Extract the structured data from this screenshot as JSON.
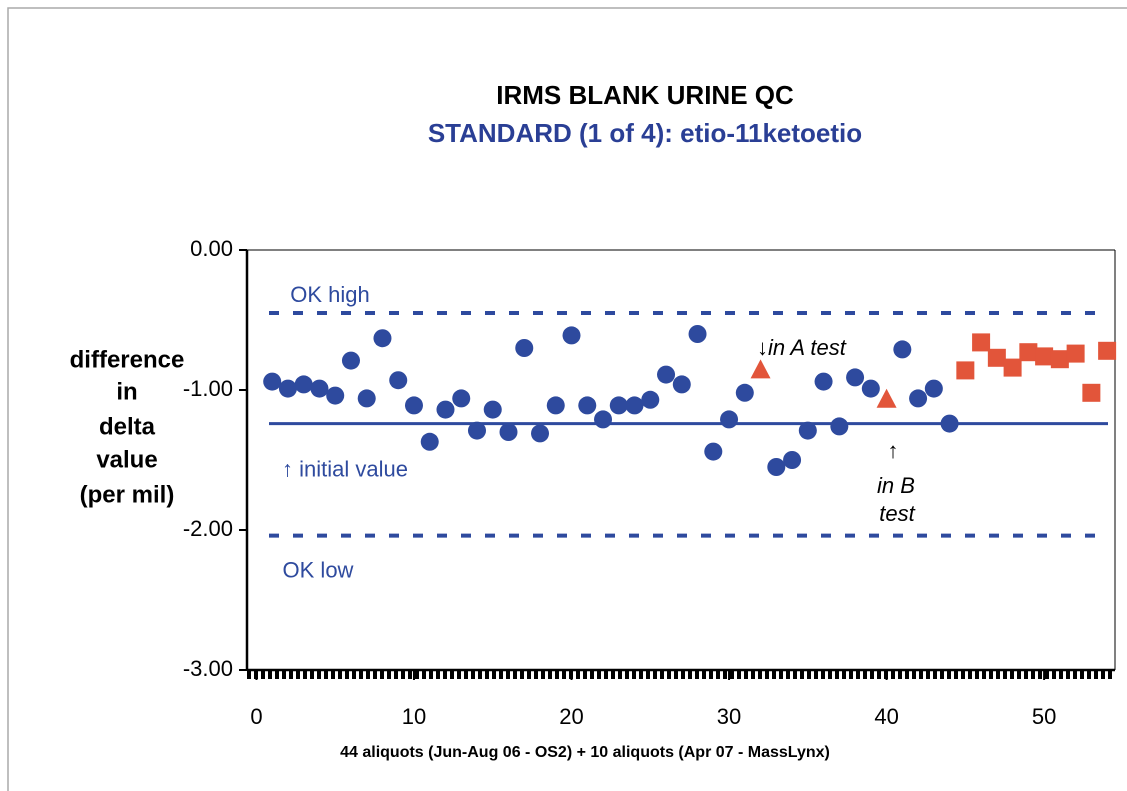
{
  "chart_data": {
    "type": "scatter",
    "title": "IRMS BLANK URINE QC",
    "subtitle": "STANDARD (1 of 4): etio-11ketoetio",
    "xlabel": "44 aliquots (Jun-Aug 06 - OS2) + 10 aliquots (Apr 07 - MassLynx)",
    "ylabel": [
      "difference",
      "in",
      "delta",
      "value",
      "(per mil)"
    ],
    "xlim": [
      -0.6,
      54.5
    ],
    "xticks": [
      0,
      10,
      20,
      30,
      40,
      50
    ],
    "ylim": [
      -3,
      0
    ],
    "yticks": [
      {
        "value": 0,
        "label": "0.00"
      },
      {
        "value": -1,
        "label": "-1.00"
      },
      {
        "value": -2,
        "label": "-2.00"
      },
      {
        "value": -3,
        "label": "-3.00"
      }
    ],
    "series": [
      {
        "color": "#2e4a9e",
        "marker": "circle",
        "x": [
          1,
          2,
          3,
          4,
          5,
          6,
          7,
          8,
          9,
          10,
          11,
          12,
          13,
          14,
          15,
          16,
          17,
          18,
          19,
          20,
          21,
          22,
          23,
          24,
          25,
          26,
          27,
          28,
          29,
          30,
          31,
          33,
          34,
          35,
          36,
          37,
          38,
          39,
          41,
          42,
          43,
          44
        ],
        "values": [
          -0.94,
          -0.99,
          -0.96,
          -0.99,
          -1.04,
          -0.79,
          -1.06,
          -0.63,
          -0.93,
          -1.11,
          -1.37,
          -1.14,
          -1.06,
          -1.29,
          -1.14,
          -1.3,
          -0.7,
          -1.31,
          -1.11,
          -0.61,
          -1.11,
          -1.21,
          -1.11,
          -1.11,
          -1.07,
          -0.89,
          -0.96,
          -0.6,
          -1.44,
          -1.21,
          -1.02,
          -1.55,
          -1.5,
          -1.29,
          -0.94,
          -1.26,
          -0.91,
          -0.99,
          -0.71,
          -1.06,
          -0.99,
          -1.24
        ]
      },
      {
        "color": "#e2553a",
        "marker": "triangle",
        "x": [
          32,
          40
        ],
        "values": [
          -0.86,
          -1.07
        ]
      },
      {
        "color": "#e2553a",
        "marker": "square",
        "x": [
          45,
          46,
          47,
          48,
          49,
          50,
          51,
          52,
          53,
          54
        ],
        "values": [
          -0.86,
          -0.66,
          -0.77,
          -0.84,
          -0.73,
          -0.76,
          -0.78,
          -0.74,
          -1.02,
          -0.72
        ]
      }
    ],
    "lines": [
      {
        "value": -0.45,
        "label": "OK high",
        "style": "dashed",
        "color": "#2e4a9e"
      },
      {
        "value": -1.24,
        "label": "↑ initial value",
        "style": "solid",
        "color": "#2e4a9e"
      },
      {
        "value": -2.04,
        "label": "OK low",
        "style": "dashed",
        "color": "#2e4a9e"
      }
    ],
    "annotations": [
      "↓in A test",
      "↑",
      "in B",
      "test"
    ]
  }
}
